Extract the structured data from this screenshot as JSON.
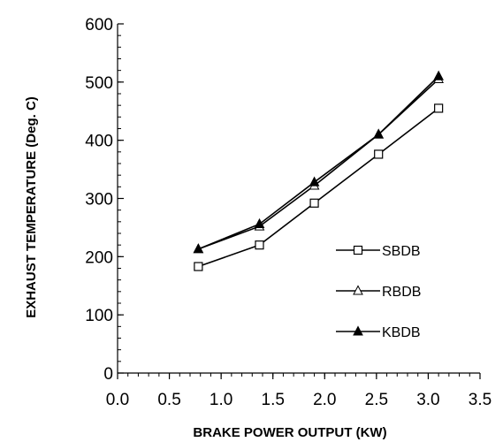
{
  "chart_data": {
    "type": "line",
    "xlabel": "BRAKE POWER OUTPUT (KW)",
    "ylabel": "EXHAUST TEMPERATURE (Deg. C)",
    "xlim": [
      0.0,
      3.5
    ],
    "ylim": [
      0,
      600
    ],
    "xticks": [
      "0.0",
      "0.5",
      "1.0",
      "1.5",
      "2.0",
      "2.5",
      "3.0",
      "3.5"
    ],
    "yticks": [
      "0",
      "100",
      "200",
      "300",
      "400",
      "500",
      "600"
    ],
    "x_minor_step": 0.1,
    "y_minor_step": 20,
    "grid": false,
    "legend_placement": "bottom-right",
    "series": [
      {
        "name": "SBDB",
        "marker": "open-square",
        "color": "#000000",
        "x": [
          0.78,
          1.37,
          1.9,
          2.52,
          3.1
        ],
        "y": [
          183,
          220,
          292,
          376,
          455
        ]
      },
      {
        "name": "RBDB",
        "marker": "open-triangle",
        "color": "#000000",
        "x": [
          0.78,
          1.37,
          1.9,
          2.52,
          3.1
        ],
        "y": [
          213,
          252,
          322,
          410,
          505
        ]
      },
      {
        "name": "KBDB",
        "marker": "filled-triangle",
        "color": "#000000",
        "x": [
          0.78,
          1.37,
          1.9,
          2.52,
          3.1
        ],
        "y": [
          213,
          256,
          328,
          410,
          510
        ]
      }
    ]
  }
}
